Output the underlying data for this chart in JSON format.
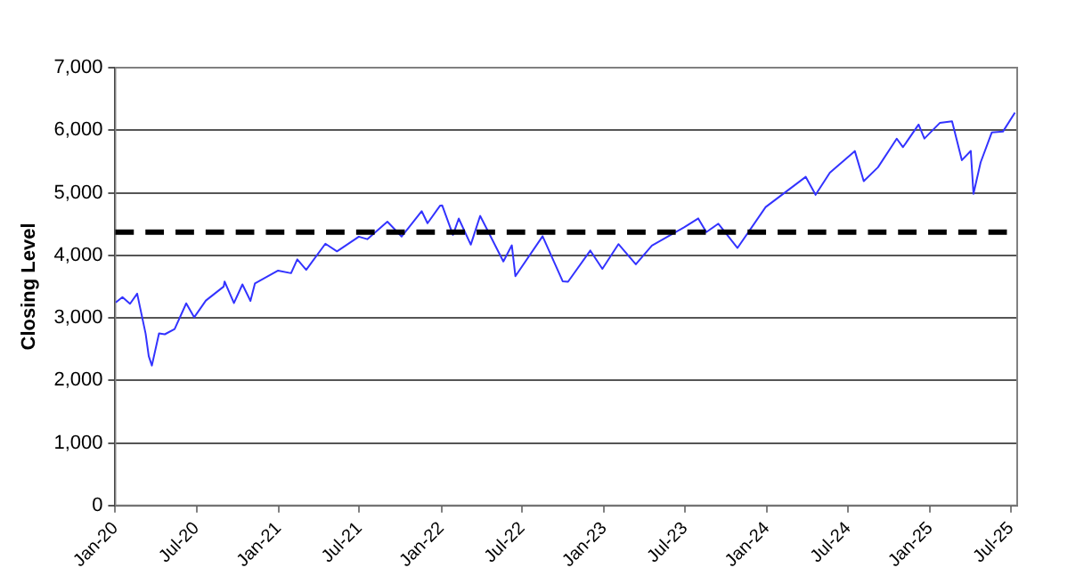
{
  "chart_data": {
    "type": "line",
    "ylabel": "Closing Level",
    "x": [
      "2020-01-02",
      "2020-01-17",
      "2020-02-03",
      "2020-02-19",
      "2020-03-09",
      "2020-03-16",
      "2020-03-23",
      "2020-04-08",
      "2020-04-21",
      "2020-05-13",
      "2020-06-08",
      "2020-06-26",
      "2020-07-22",
      "2020-08-31",
      "2020-09-02",
      "2020-09-23",
      "2020-10-12",
      "2020-10-30",
      "2020-11-09",
      "2020-12-31",
      "2021-01-29",
      "2021-02-12",
      "2021-03-04",
      "2021-04-16",
      "2021-05-12",
      "2021-06-30",
      "2021-07-19",
      "2021-09-02",
      "2021-10-04",
      "2021-11-18",
      "2021-12-01",
      "2021-12-29",
      "2022-01-03",
      "2022-01-27",
      "2022-02-09",
      "2022-03-08",
      "2022-03-29",
      "2022-05-20",
      "2022-06-08",
      "2022-06-16",
      "2022-08-16",
      "2022-09-30",
      "2022-10-12",
      "2022-12-01",
      "2022-12-28",
      "2023-02-02",
      "2023-03-13",
      "2023-04-18",
      "2023-06-30",
      "2023-07-31",
      "2023-08-18",
      "2023-09-14",
      "2023-10-27",
      "2023-12-29",
      "2024-03-28",
      "2024-04-19",
      "2024-05-21",
      "2024-07-16",
      "2024-08-05",
      "2024-09-06",
      "2024-10-18",
      "2024-11-01",
      "2024-12-06",
      "2024-12-19",
      "2025-01-23",
      "2025-02-19",
      "2025-03-13",
      "2025-04-02",
      "2025-04-08",
      "2025-04-24",
      "2025-05-19",
      "2025-06-13",
      "2025-07-10"
    ],
    "series": [
      {
        "color": "#3333ff",
        "values": [
          3245,
          3330,
          3225,
          3386,
          2746,
          2386,
          2237,
          2750,
          2737,
          2820,
          3232,
          3009,
          3276,
          3500,
          3580,
          3237,
          3534,
          3270,
          3550,
          3756,
          3714,
          3934,
          3768,
          4185,
          4063,
          4297,
          4258,
          4537,
          4300,
          4705,
          4513,
          4793,
          4796,
          4326,
          4587,
          4170,
          4631,
          3901,
          4160,
          3666,
          4305,
          3585,
          3577,
          4076,
          3783,
          4179,
          3855,
          4155,
          4450,
          4589,
          4370,
          4505,
          4117,
          4770,
          5254,
          4967,
          5321,
          5667,
          5186,
          5408,
          5865,
          5729,
          6090,
          5867,
          6119,
          6144,
          5521,
          5670,
          4982,
          5484,
          5963,
          5977,
          6280
        ]
      }
    ],
    "xlim": [
      "2020-01-01",
      "2025-07-15"
    ],
    "xticks": [
      {
        "value": "2020-01-01",
        "label": "Jan-20"
      },
      {
        "value": "2020-07-01",
        "label": "Jul-20"
      },
      {
        "value": "2021-01-01",
        "label": "Jan-21"
      },
      {
        "value": "2021-07-01",
        "label": "Jul-21"
      },
      {
        "value": "2022-01-01",
        "label": "Jan-22"
      },
      {
        "value": "2022-07-01",
        "label": "Jul-22"
      },
      {
        "value": "2023-01-01",
        "label": "Jan-23"
      },
      {
        "value": "2023-07-01",
        "label": "Jul-23"
      },
      {
        "value": "2024-01-01",
        "label": "Jan-24"
      },
      {
        "value": "2024-07-01",
        "label": "Jul-24"
      },
      {
        "value": "2025-01-01",
        "label": "Jan-25"
      },
      {
        "value": "2025-07-01",
        "label": "Jul-25"
      }
    ],
    "ylim": [
      0,
      7000
    ],
    "yticks": [
      {
        "value": 0,
        "label": "0"
      },
      {
        "value": 1000,
        "label": "1,000"
      },
      {
        "value": 2000,
        "label": "2,000"
      },
      {
        "value": 3000,
        "label": "3,000"
      },
      {
        "value": 4000,
        "label": "4,000"
      },
      {
        "value": 5000,
        "label": "5,000"
      },
      {
        "value": 6000,
        "label": "6,000"
      },
      {
        "value": 7000,
        "label": "7,000"
      }
    ],
    "ref_lines": [
      {
        "axis": "y",
        "value": 4370,
        "color": "#000000",
        "line_style": "dashed"
      }
    ],
    "grid": "y",
    "legend": false,
    "marker": "none",
    "line_style": "solid"
  }
}
